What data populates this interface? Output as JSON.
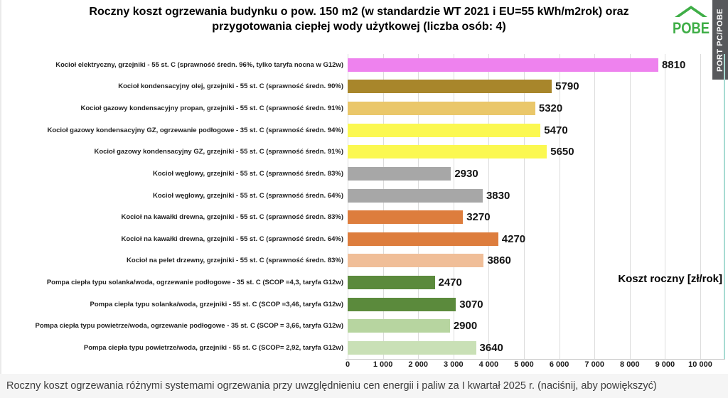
{
  "title": "Roczny koszt ogrzewania budynku o pow. 150 m2 (w standardzie WT 2021 i EU=55 kWh/m2rok) oraz przygotowania ciepłej wody użytkowej (liczba osób: 4)",
  "logo": {
    "text": "POBE",
    "color": "#3FAE47",
    "banner_text": "PORT PC/POBE",
    "banner_bg": "#57585B"
  },
  "footer": "Roczny koszt ogrzewania różnymi systemami ogrzewania przy uwzględnieniu cen energii i paliw za I kwartał 2025 r. (naciśnij, aby powiększyć)",
  "chart_data": {
    "type": "bar",
    "orientation": "horizontal",
    "title": "Roczny koszt ogrzewania budynku o pow. 150 m2 (w standardzie WT 2021 i EU=55 kWh/m2rok) oraz przygotowania ciepłej wody użytkowej (liczba osób: 4)",
    "xlabel": "Koszt roczny [zł/rok]",
    "xlim": [
      0,
      10000
    ],
    "grid": true,
    "value_labels": true,
    "x_ticks": [
      "0",
      "1 000",
      "2 000",
      "3 000",
      "4 000",
      "5 000",
      "6 000",
      "7 000",
      "8 000",
      "9 000",
      "10 000"
    ],
    "bars": [
      {
        "label": "Kocioł elektryczny, grzejniki - 55 st. C (sprawność średn. 96%, tylko taryfa nocna w G12w)",
        "value": 8810,
        "color": "#EE82EE"
      },
      {
        "label": "Kocioł kondensacyjny olej, grzejniki - 55 st. C (sprawność średn. 90%)",
        "value": 5790,
        "color": "#A8862B"
      },
      {
        "label": "Kocioł gazowy kondensacyjny propan, grzejniki - 55 st. C (sprawność średn. 91%)",
        "value": 5320,
        "color": "#EAC76A"
      },
      {
        "label": "Kocioł gazowy kondensacyjny GZ, ogrzewanie podłogowe - 35 st. C (sprawność średn. 94%)",
        "value": 5470,
        "color": "#FBF851"
      },
      {
        "label": "Kocioł gazowy kondensacyjny GZ, grzejniki - 55 st. C (sprawność średn. 91%)",
        "value": 5650,
        "color": "#FBF851"
      },
      {
        "label": "Kocioł węglowy, grzejniki - 55 st. C (sprawność średn. 83%)",
        "value": 2930,
        "color": "#A7A7A7"
      },
      {
        "label": "Kocioł węglowy, grzejniki - 55 st. C (sprawność średn. 64%)",
        "value": 3830,
        "color": "#A7A7A7"
      },
      {
        "label": "Kocioł na kawałki drewna, grzejniki - 55 st. C (sprawność średn. 83%)",
        "value": 3270,
        "color": "#DD7D3D"
      },
      {
        "label": "Kocioł na kawałki drewna, grzejniki - 55 st. C (sprawność średn. 64%)",
        "value": 4270,
        "color": "#DD7D3D"
      },
      {
        "label": "Kocioł na pelet drzewny, grzejniki - 55 st. C (sprawność średn. 83%)",
        "value": 3860,
        "color": "#F0BE98"
      },
      {
        "label": "Pompa ciepła typu solanka/woda, ogrzewanie podłogowe - 35 st. C (SCOP =4,3, taryfa G12w)",
        "value": 2470,
        "color": "#5B8A3C"
      },
      {
        "label": "Pompa ciepła typu solanka/woda, grzejniki - 55 st. C (SCOP =3,46, taryfa G12w)",
        "value": 3070,
        "color": "#5B8A3C"
      },
      {
        "label": "Pompa ciepła typu powietrze/woda, ogrzewanie podłogowe - 35 st. C (SCOP = 3,66, taryfa G12w)",
        "value": 2900,
        "color": "#B7D5A0"
      },
      {
        "label": "Pompa ciepła typu powietrze/woda, grzejniki - 55 st. C (SCOP= 2,92, taryfa G12w)",
        "value": 3640,
        "color": "#C9E0B6"
      }
    ]
  }
}
